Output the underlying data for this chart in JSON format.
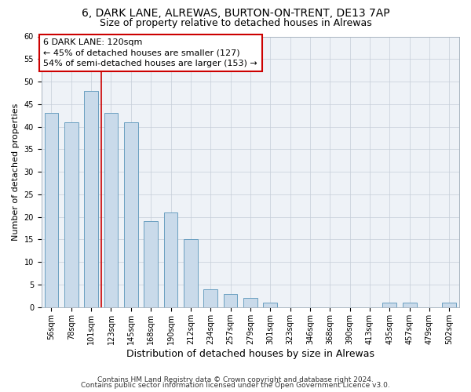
{
  "title1": "6, DARK LANE, ALREWAS, BURTON-ON-TRENT, DE13 7AP",
  "title2": "Size of property relative to detached houses in Alrewas",
  "xlabel": "Distribution of detached houses by size in Alrewas",
  "ylabel": "Number of detached properties",
  "categories": [
    "56sqm",
    "78sqm",
    "101sqm",
    "123sqm",
    "145sqm",
    "168sqm",
    "190sqm",
    "212sqm",
    "234sqm",
    "257sqm",
    "279sqm",
    "301sqm",
    "323sqm",
    "346sqm",
    "368sqm",
    "390sqm",
    "413sqm",
    "435sqm",
    "457sqm",
    "479sqm",
    "502sqm"
  ],
  "values": [
    43,
    41,
    48,
    43,
    41,
    19,
    21,
    15,
    4,
    3,
    2,
    1,
    0,
    0,
    0,
    0,
    0,
    1,
    1,
    0,
    1
  ],
  "bar_color": "#c9daea",
  "bar_edge_color": "#6a9fc0",
  "bar_width": 0.7,
  "vline_color": "#cc0000",
  "vline_x_index": 2.5,
  "annotation_text": "6 DARK LANE: 120sqm\n← 45% of detached houses are smaller (127)\n54% of semi-detached houses are larger (153) →",
  "annotation_box_color": "#ffffff",
  "annotation_box_edge": "#cc0000",
  "ylim": [
    0,
    60
  ],
  "yticks": [
    0,
    5,
    10,
    15,
    20,
    25,
    30,
    35,
    40,
    45,
    50,
    55,
    60
  ],
  "plot_bg_color": "#eef2f7",
  "grid_color": "#c5cdd8",
  "title1_fontsize": 10,
  "title2_fontsize": 9,
  "xlabel_fontsize": 9,
  "ylabel_fontsize": 8,
  "tick_fontsize": 7,
  "annotation_fontsize": 8,
  "footer_fontsize": 6.5,
  "footer1": "Contains HM Land Registry data © Crown copyright and database right 2024.",
  "footer2": "Contains public sector information licensed under the Open Government Licence v3.0."
}
